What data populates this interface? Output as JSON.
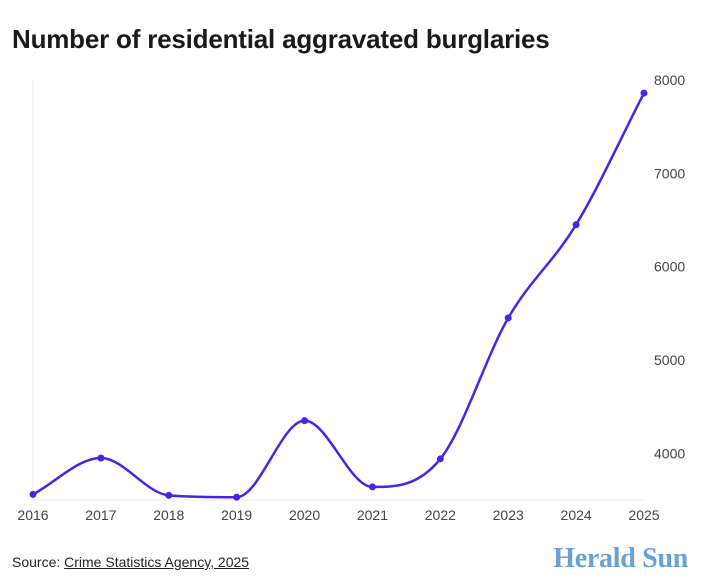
{
  "chart_data": {
    "type": "line",
    "title": "Number of residential aggravated burglaries",
    "x": [
      "2016",
      "2017",
      "2018",
      "2019",
      "2020",
      "2021",
      "2022",
      "2023",
      "2024",
      "2025"
    ],
    "series": [
      {
        "values": [
          3560,
          3950,
          3550,
          3530,
          4350,
          3640,
          3940,
          5450,
          6450,
          7860
        ]
      }
    ],
    "ylim": [
      3500,
      8000
    ],
    "yticks": [
      4000,
      5000,
      6000,
      7000,
      8000
    ],
    "y_axis_position": "right",
    "grid": false,
    "line_color": "#4b22e6",
    "smooth": true
  },
  "source": {
    "prefix": "Source: ",
    "link_text": "Crime Statistics Agency, 2025"
  },
  "brand": "Herald Sun"
}
